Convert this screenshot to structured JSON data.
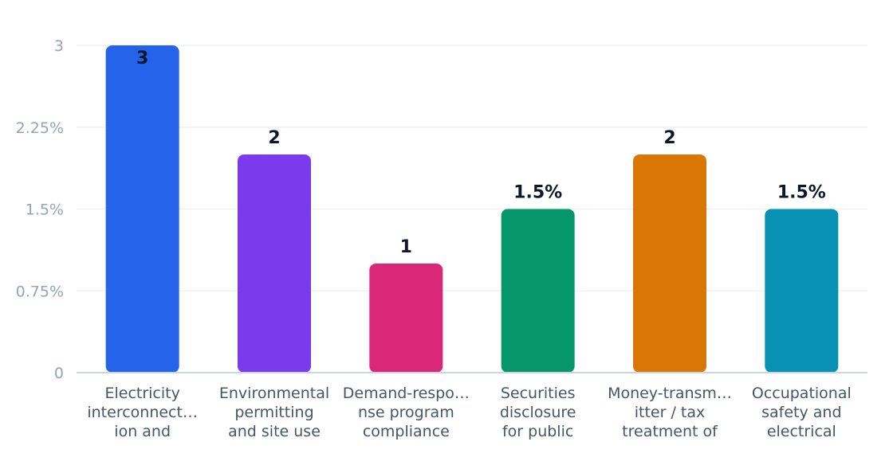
{
  "chart_data": {
    "type": "bar",
    "categories": [
      [
        "Electricity",
        "interconnect…",
        "ion and"
      ],
      [
        "Environmental",
        "permitting",
        "and site use"
      ],
      [
        "Demand-respo…",
        "nse program",
        "compliance"
      ],
      [
        "Securities",
        "disclosure",
        "for public"
      ],
      [
        "Money-transm…",
        "itter / tax",
        "treatment of"
      ],
      [
        "Occupational",
        "safety and",
        "electrical"
      ]
    ],
    "values": [
      3,
      2,
      1,
      1.5,
      2,
      1.5
    ],
    "data_labels": [
      "3",
      "2",
      "1",
      "1.5%",
      "2",
      "1.5%"
    ],
    "colors": [
      "#2563eb",
      "#7c3aed",
      "#db2777",
      "#059669",
      "#d97706",
      "#0891b2"
    ],
    "yticks": [
      {
        "value": 0,
        "label": "0"
      },
      {
        "value": 0.75,
        "label": "0.75%"
      },
      {
        "value": 1.5,
        "label": "1.5%"
      },
      {
        "value": 2.25,
        "label": "2.25%"
      },
      {
        "value": 3,
        "label": "3"
      }
    ],
    "ylim": [
      0,
      3
    ],
    "grid": true,
    "title": "",
    "xlabel": "",
    "ylabel": ""
  }
}
